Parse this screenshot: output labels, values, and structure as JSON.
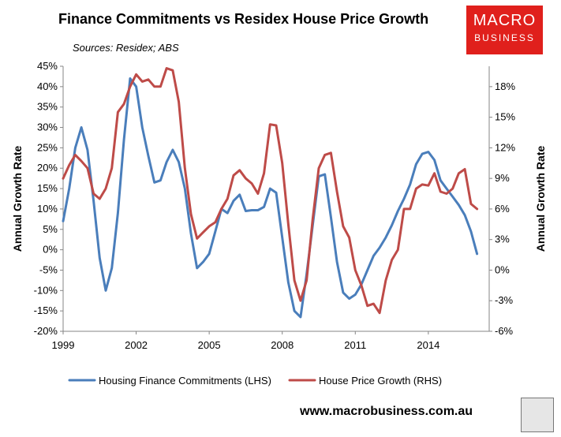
{
  "chart_data": {
    "type": "line",
    "title": "Finance Commitments vs Residex House Price Growth",
    "subtitle": "Sources: Residex; ABS",
    "ylabel_left": "Annual Growth Rate",
    "ylabel_right": "Annual Growth Rate",
    "xlim": [
      1999,
      2016.5
    ],
    "ylim_left": [
      -20,
      45
    ],
    "ylim_right": [
      -6,
      20
    ],
    "x_ticks": [
      {
        "value": 1999,
        "label": "1999"
      },
      {
        "value": 2002,
        "label": "2002"
      },
      {
        "value": 2005,
        "label": "2005"
      },
      {
        "value": 2008,
        "label": "2008"
      },
      {
        "value": 2011,
        "label": "2011"
      },
      {
        "value": 2014,
        "label": "2014"
      }
    ],
    "y_left_ticks": [
      {
        "value": 45,
        "label": "45%"
      },
      {
        "value": 40,
        "label": "40%"
      },
      {
        "value": 35,
        "label": "35%"
      },
      {
        "value": 30,
        "label": "30%"
      },
      {
        "value": 25,
        "label": "25%"
      },
      {
        "value": 20,
        "label": "20%"
      },
      {
        "value": 15,
        "label": "15%"
      },
      {
        "value": 10,
        "label": "10%"
      },
      {
        "value": 5,
        "label": "5%"
      },
      {
        "value": 0,
        "label": "0%"
      },
      {
        "value": -5,
        "label": "-5%"
      },
      {
        "value": -10,
        "label": "-10%"
      },
      {
        "value": -15,
        "label": "-15%"
      },
      {
        "value": -20,
        "label": "-20%"
      }
    ],
    "y_right_ticks": [
      {
        "value": 18,
        "label": "18%"
      },
      {
        "value": 15,
        "label": "15%"
      },
      {
        "value": 12,
        "label": "12%"
      },
      {
        "value": 9,
        "label": "9%"
      },
      {
        "value": 6,
        "label": "6%"
      },
      {
        "value": 3,
        "label": "3%"
      },
      {
        "value": 0,
        "label": "0%"
      },
      {
        "value": -3,
        "label": "-3%"
      },
      {
        "value": -6,
        "label": "-6%"
      }
    ],
    "legend_position": "bottom",
    "series": [
      {
        "name": "Housing Finance Commitments (LHS)",
        "axis": "left",
        "color": "#4a7ebb",
        "points": [
          [
            1999.0,
            7.0
          ],
          [
            1999.25,
            15.0
          ],
          [
            1999.5,
            25.0
          ],
          [
            1999.75,
            30.0
          ],
          [
            2000.0,
            24.5
          ],
          [
            2000.25,
            12.0
          ],
          [
            2000.5,
            -2.0
          ],
          [
            2000.75,
            -10.0
          ],
          [
            2001.0,
            -4.5
          ],
          [
            2001.25,
            9.0
          ],
          [
            2001.5,
            27.0
          ],
          [
            2001.75,
            42.0
          ],
          [
            2002.0,
            40.0
          ],
          [
            2002.25,
            30.0
          ],
          [
            2002.5,
            23.0
          ],
          [
            2002.75,
            16.5
          ],
          [
            2003.0,
            17.0
          ],
          [
            2003.25,
            21.5
          ],
          [
            2003.5,
            24.5
          ],
          [
            2003.75,
            21.5
          ],
          [
            2004.0,
            15.0
          ],
          [
            2004.25,
            4.0
          ],
          [
            2004.5,
            -4.5
          ],
          [
            2004.75,
            -3.0
          ],
          [
            2005.0,
            -1.0
          ],
          [
            2005.25,
            4.5
          ],
          [
            2005.5,
            10.0
          ],
          [
            2005.75,
            9.0
          ],
          [
            2006.0,
            12.0
          ],
          [
            2006.25,
            13.5
          ],
          [
            2006.5,
            9.5
          ],
          [
            2006.75,
            9.7
          ],
          [
            2007.0,
            9.7
          ],
          [
            2007.25,
            10.5
          ],
          [
            2007.5,
            15.0
          ],
          [
            2007.75,
            14.0
          ],
          [
            2008.0,
            3.0
          ],
          [
            2008.25,
            -8.0
          ],
          [
            2008.5,
            -15.0
          ],
          [
            2008.75,
            -16.5
          ],
          [
            2009.0,
            -6.0
          ],
          [
            2009.25,
            6.0
          ],
          [
            2009.5,
            18.0
          ],
          [
            2009.75,
            18.5
          ],
          [
            2010.0,
            8.0
          ],
          [
            2010.25,
            -3.0
          ],
          [
            2010.5,
            -10.5
          ],
          [
            2010.75,
            -12.0
          ],
          [
            2011.0,
            -11.0
          ],
          [
            2011.25,
            -8.5
          ],
          [
            2011.5,
            -5.0
          ],
          [
            2011.75,
            -1.5
          ],
          [
            2012.0,
            0.5
          ],
          [
            2012.25,
            3.0
          ],
          [
            2012.5,
            6.0
          ],
          [
            2012.75,
            9.5
          ],
          [
            2013.0,
            12.5
          ],
          [
            2013.25,
            16.0
          ],
          [
            2013.5,
            21.0
          ],
          [
            2013.75,
            23.5
          ],
          [
            2014.0,
            24.0
          ],
          [
            2014.25,
            22.0
          ],
          [
            2014.5,
            17.0
          ],
          [
            2014.75,
            15.0
          ],
          [
            2015.0,
            13.0
          ],
          [
            2015.25,
            11.0
          ],
          [
            2015.5,
            8.5
          ],
          [
            2015.75,
            4.5
          ],
          [
            2016.0,
            -1.0
          ]
        ]
      },
      {
        "name": "House Price Growth (RHS)",
        "axis": "right",
        "color": "#be4b48",
        "points": [
          [
            1999.0,
            9.0
          ],
          [
            1999.25,
            10.3
          ],
          [
            1999.5,
            11.3
          ],
          [
            1999.75,
            10.7
          ],
          [
            2000.0,
            10.0
          ],
          [
            2000.25,
            7.5
          ],
          [
            2000.5,
            7.0
          ],
          [
            2000.75,
            8.0
          ],
          [
            2001.0,
            10.0
          ],
          [
            2001.25,
            15.5
          ],
          [
            2001.5,
            16.3
          ],
          [
            2001.75,
            18.0
          ],
          [
            2002.0,
            19.2
          ],
          [
            2002.25,
            18.5
          ],
          [
            2002.5,
            18.7
          ],
          [
            2002.75,
            18.0
          ],
          [
            2003.0,
            18.0
          ],
          [
            2003.25,
            19.8
          ],
          [
            2003.5,
            19.6
          ],
          [
            2003.75,
            16.5
          ],
          [
            2004.0,
            10.0
          ],
          [
            2004.25,
            5.5
          ],
          [
            2004.5,
            3.1
          ],
          [
            2004.75,
            3.7
          ],
          [
            2005.0,
            4.3
          ],
          [
            2005.25,
            4.7
          ],
          [
            2005.5,
            6.0
          ],
          [
            2005.75,
            7.0
          ],
          [
            2006.0,
            9.3
          ],
          [
            2006.25,
            9.8
          ],
          [
            2006.5,
            9.0
          ],
          [
            2006.75,
            8.5
          ],
          [
            2007.0,
            7.5
          ],
          [
            2007.25,
            9.5
          ],
          [
            2007.5,
            14.3
          ],
          [
            2007.75,
            14.2
          ],
          [
            2008.0,
            10.5
          ],
          [
            2008.25,
            4.5
          ],
          [
            2008.5,
            -1.0
          ],
          [
            2008.75,
            -3.0
          ],
          [
            2009.0,
            -1.0
          ],
          [
            2009.25,
            5.0
          ],
          [
            2009.5,
            10.0
          ],
          [
            2009.75,
            11.3
          ],
          [
            2010.0,
            11.5
          ],
          [
            2010.25,
            7.7
          ],
          [
            2010.5,
            4.3
          ],
          [
            2010.75,
            3.2
          ],
          [
            2011.0,
            0.0
          ],
          [
            2011.25,
            -1.5
          ],
          [
            2011.5,
            -3.5
          ],
          [
            2011.75,
            -3.3
          ],
          [
            2012.0,
            -4.2
          ],
          [
            2012.25,
            -1.0
          ],
          [
            2012.5,
            1.0
          ],
          [
            2012.75,
            2.0
          ],
          [
            2013.0,
            6.0
          ],
          [
            2013.25,
            6.0
          ],
          [
            2013.5,
            8.0
          ],
          [
            2013.75,
            8.4
          ],
          [
            2014.0,
            8.3
          ],
          [
            2014.25,
            9.5
          ],
          [
            2014.5,
            7.7
          ],
          [
            2014.75,
            7.5
          ],
          [
            2015.0,
            8.0
          ],
          [
            2015.25,
            9.5
          ],
          [
            2015.5,
            9.9
          ],
          [
            2015.75,
            6.5
          ],
          [
            2016.0,
            6.0
          ]
        ]
      }
    ]
  },
  "header": {
    "title": "Finance Commitments vs Residex House Price Growth",
    "subtitle": "Sources: Residex; ABS"
  },
  "logo": {
    "line1": "MACRO",
    "line2": "BUSINESS",
    "color": "#e0201c"
  },
  "footer": {
    "website": "www.macrobusiness.com.au"
  }
}
